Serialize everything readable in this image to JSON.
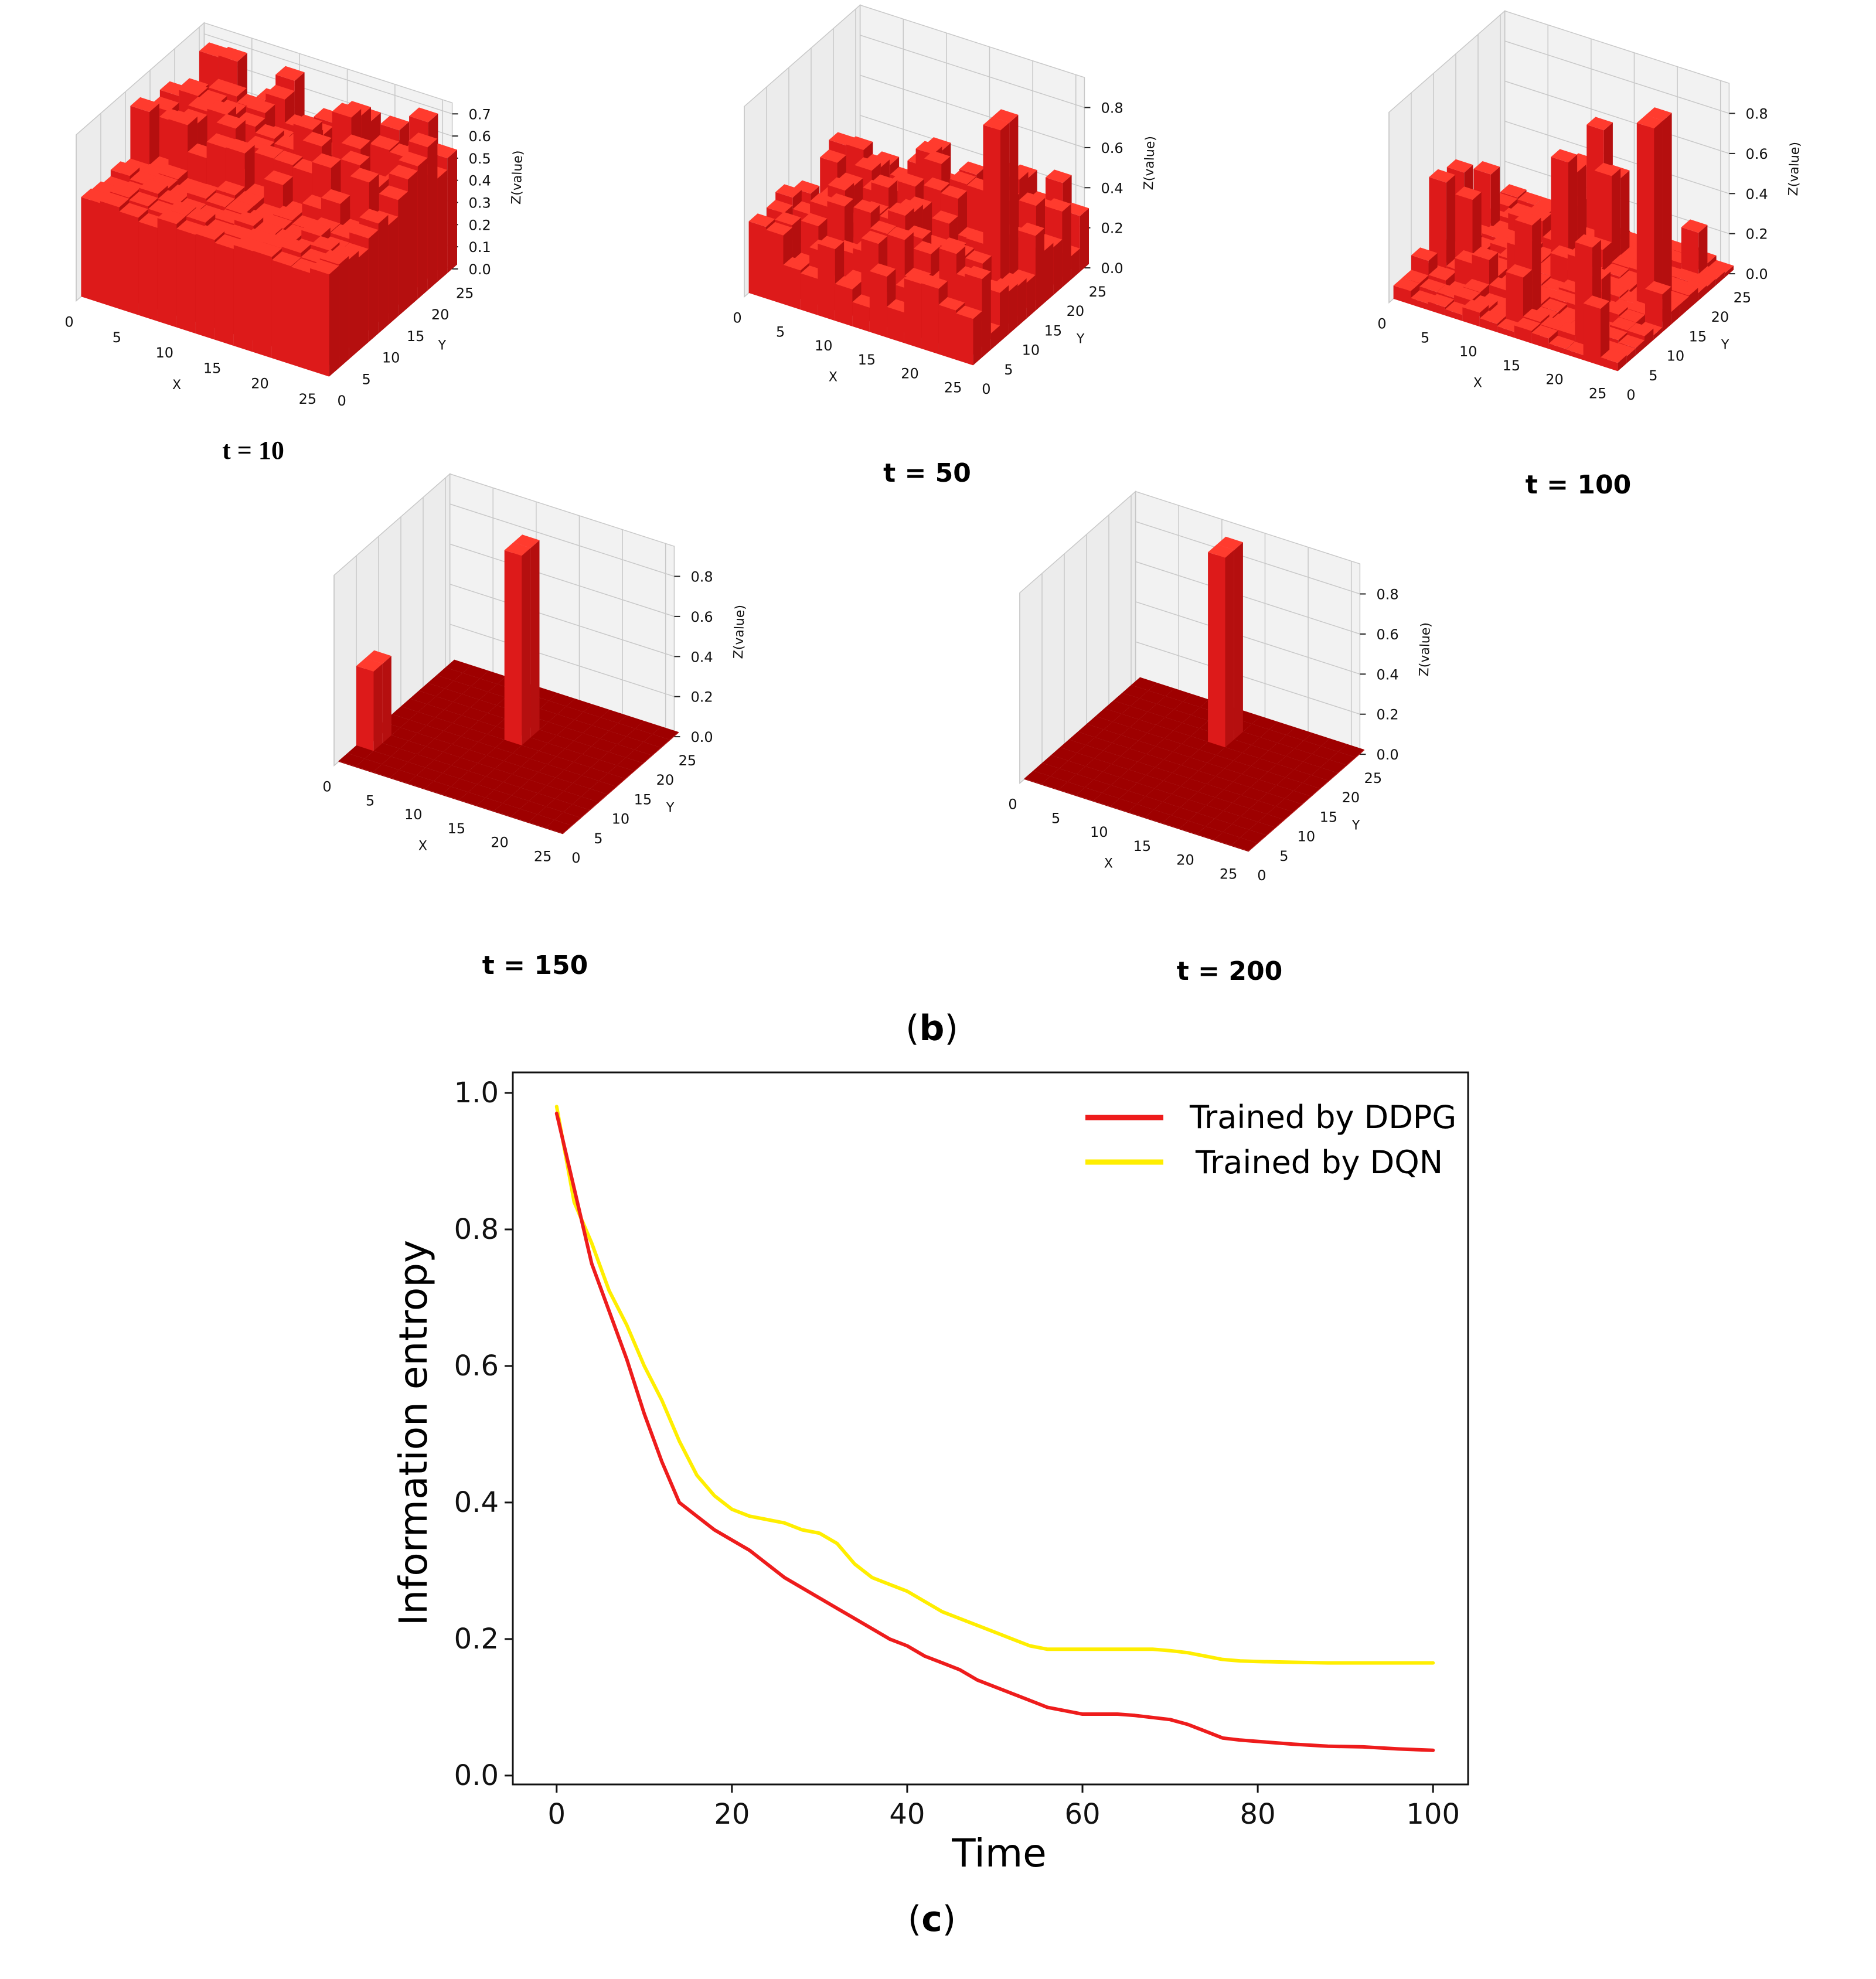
{
  "colors": {
    "bar_front": "#dd1a1a",
    "bar_side": "#b50f0f",
    "bar_top": "#ff3b2e",
    "floor": "#9e0000",
    "grid": "#c8c8c8",
    "pane": "#f2f2f2",
    "ddpg": "#ee1c1c",
    "dqn": "#ffee00",
    "axis": "#111111"
  },
  "panel_b": {
    "label": "(b)",
    "label_letter": "b",
    "plots": [
      {
        "title": "t = 10",
        "z_label": "Z(value)",
        "x_label": "X",
        "y_label": "Y",
        "x_ticks": [
          "0",
          "5",
          "10",
          "15",
          "20",
          "25"
        ],
        "y_ticks": [
          "0",
          "5",
          "10",
          "15",
          "20",
          "25"
        ],
        "z_ticks": [
          "0.0",
          "0.1",
          "0.2",
          "0.3",
          "0.4",
          "0.5",
          "0.6",
          "0.7"
        ],
        "z_max": 0.75,
        "base_level": 0.42,
        "spikes": []
      },
      {
        "title": "t = 50",
        "z_label": "Z(value)",
        "x_label": "X",
        "y_label": "Y",
        "x_ticks": [
          "0",
          "5",
          "10",
          "15",
          "20",
          "25"
        ],
        "y_ticks": [
          "0",
          "5",
          "10",
          "15",
          "20",
          "25"
        ],
        "z_ticks": [
          "0.0",
          "0.2",
          "0.4",
          "0.6",
          "0.8"
        ],
        "z_max": 0.95,
        "base_level": 0.25,
        "spikes": [
          {
            "x": 22,
            "y": 12,
            "z": 0.95
          }
        ]
      },
      {
        "title": "t = 100",
        "z_label": "Z(value)",
        "x_label": "X",
        "y_label": "Y",
        "x_ticks": [
          "0",
          "5",
          "10",
          "15",
          "20",
          "25"
        ],
        "y_ticks": [
          "0",
          "5",
          "10",
          "15",
          "20",
          "25"
        ],
        "z_ticks": [
          "0.0",
          "0.2",
          "0.4",
          "0.6",
          "0.8"
        ],
        "z_max": 0.95,
        "base_level": 0.05,
        "spikes": [
          {
            "x": 22,
            "y": 14,
            "z": 0.95
          }
        ]
      },
      {
        "title": "t = 150",
        "z_label": "Z(value)",
        "x_label": "X",
        "y_label": "Y",
        "x_ticks": [
          "0",
          "5",
          "10",
          "15",
          "20",
          "25"
        ],
        "y_ticks": [
          "0",
          "5",
          "10",
          "15",
          "20",
          "25"
        ],
        "z_ticks": [
          "0.0",
          "0.2",
          "0.4",
          "0.6",
          "0.8"
        ],
        "z_max": 0.95,
        "base_level": 0.0,
        "spikes": [
          {
            "x": 12,
            "y": 16,
            "z": 0.95
          },
          {
            "x": 0,
            "y": 6,
            "z": 0.4
          }
        ]
      },
      {
        "title": "t = 200",
        "z_label": "Z(value)",
        "x_label": "X",
        "y_label": "Y",
        "x_ticks": [
          "0",
          "5",
          "10",
          "15",
          "20",
          "25"
        ],
        "y_ticks": [
          "0",
          "5",
          "10",
          "15",
          "20",
          "25"
        ],
        "z_ticks": [
          "0.0",
          "0.2",
          "0.4",
          "0.6",
          "0.8"
        ],
        "z_max": 0.95,
        "base_level": 0.0,
        "spikes": [
          {
            "x": 12,
            "y": 20,
            "z": 0.95
          }
        ]
      }
    ]
  },
  "chart_data": {
    "type": "line",
    "title": "",
    "xlabel": "Time",
    "ylabel": "Information entropy",
    "xlim": [
      -5,
      104
    ],
    "ylim": [
      -0.013,
      1.03
    ],
    "x_ticks": [
      0,
      20,
      40,
      60,
      80,
      100
    ],
    "x_tick_labels": [
      "0",
      "20",
      "40",
      "60",
      "80",
      "100"
    ],
    "y_ticks": [
      0.0,
      0.2,
      0.4,
      0.6,
      0.8,
      1.0
    ],
    "y_tick_labels": [
      "0.0",
      "0.2",
      "0.4",
      "0.6",
      "0.8",
      "1.0"
    ],
    "legend_position": "top-right",
    "panel_label": "(c)",
    "panel_letter": "c",
    "series": [
      {
        "name": "Trained by DDPG",
        "color": "#ee1c1c",
        "x": [
          0,
          2,
          4,
          6,
          8,
          10,
          12,
          14,
          16,
          18,
          20,
          22,
          24,
          26,
          28,
          30,
          32,
          34,
          36,
          38,
          40,
          42,
          44,
          46,
          48,
          50,
          52,
          54,
          56,
          58,
          60,
          62,
          64,
          66,
          68,
          70,
          72,
          74,
          76,
          78,
          80,
          84,
          88,
          92,
          96,
          100
        ],
        "y": [
          0.97,
          0.86,
          0.75,
          0.68,
          0.61,
          0.53,
          0.46,
          0.4,
          0.38,
          0.36,
          0.345,
          0.33,
          0.31,
          0.29,
          0.275,
          0.26,
          0.245,
          0.23,
          0.215,
          0.2,
          0.19,
          0.175,
          0.165,
          0.155,
          0.14,
          0.13,
          0.12,
          0.11,
          0.1,
          0.095,
          0.09,
          0.09,
          0.09,
          0.088,
          0.085,
          0.082,
          0.075,
          0.065,
          0.055,
          0.052,
          0.05,
          0.046,
          0.043,
          0.042,
          0.039,
          0.037
        ]
      },
      {
        "name": "Trained by DQN",
        "color": "#ffee00",
        "x": [
          0,
          2,
          4,
          6,
          8,
          10,
          12,
          14,
          16,
          18,
          20,
          22,
          24,
          26,
          28,
          30,
          32,
          34,
          36,
          38,
          40,
          42,
          44,
          46,
          48,
          50,
          52,
          54,
          56,
          58,
          60,
          62,
          64,
          66,
          68,
          70,
          72,
          74,
          76,
          78,
          80,
          84,
          88,
          92,
          96,
          100
        ],
        "y": [
          0.98,
          0.84,
          0.78,
          0.71,
          0.66,
          0.6,
          0.55,
          0.49,
          0.44,
          0.41,
          0.39,
          0.38,
          0.375,
          0.37,
          0.36,
          0.355,
          0.34,
          0.31,
          0.29,
          0.28,
          0.27,
          0.255,
          0.24,
          0.23,
          0.22,
          0.21,
          0.2,
          0.19,
          0.185,
          0.185,
          0.185,
          0.185,
          0.185,
          0.185,
          0.185,
          0.183,
          0.18,
          0.175,
          0.17,
          0.168,
          0.167,
          0.166,
          0.165,
          0.165,
          0.165,
          0.165
        ]
      }
    ]
  }
}
